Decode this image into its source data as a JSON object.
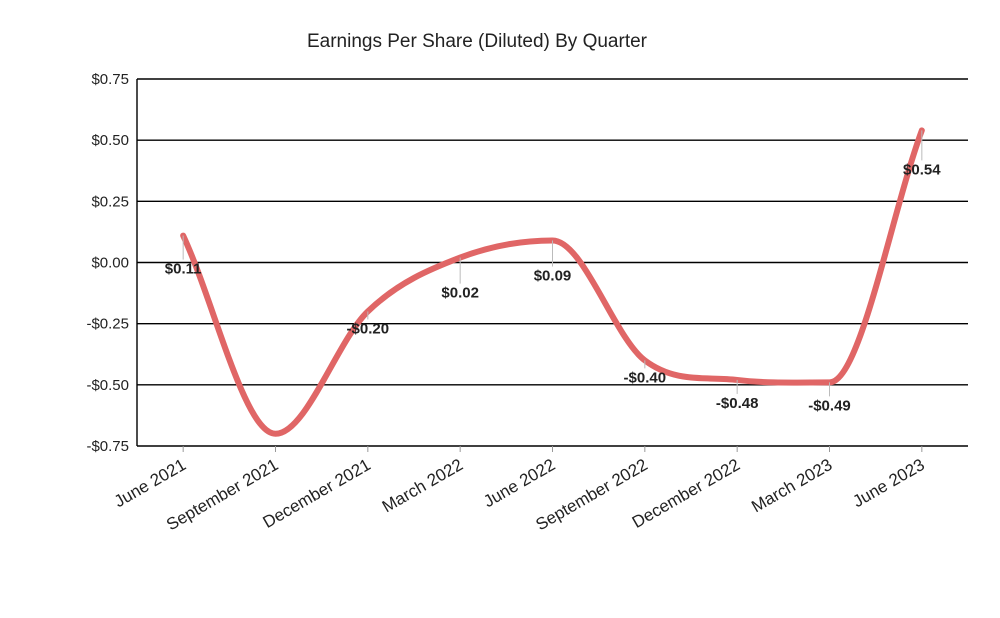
{
  "chart_data": {
    "type": "line",
    "title": "Earnings Per Share (Diluted) By Quarter",
    "xlabel": "",
    "ylabel": "",
    "categories": [
      "June 2021",
      "September 2021",
      "December 2021",
      "March 2022",
      "June 2022",
      "September 2022",
      "December 2022",
      "March 2023",
      "June 2023"
    ],
    "values": [
      0.11,
      -0.7,
      -0.2,
      0.02,
      0.09,
      -0.4,
      -0.48,
      -0.49,
      0.54
    ],
    "data_labels": [
      "$0.11",
      "",
      "-$0.20",
      "$0.02",
      "$0.09",
      "-$0.40",
      "-$0.48",
      "-$0.49",
      "$0.54"
    ],
    "ylim": [
      -0.75,
      0.75
    ],
    "yticks": [
      0.75,
      0.5,
      0.25,
      0.0,
      -0.25,
      -0.5,
      -0.75
    ],
    "ytick_labels": [
      "$0.75",
      "$0.50",
      "$0.25",
      "$0.00",
      "-$0.25",
      "-$0.50",
      "-$0.75"
    ],
    "grid": true,
    "smooth": true,
    "line_color": "#e06666"
  }
}
